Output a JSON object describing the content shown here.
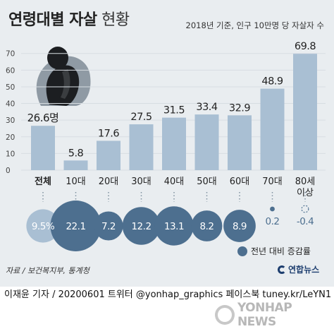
{
  "header": {
    "title_bold": "연령대별 자살",
    "title_light": "현황",
    "subtitle": "2018년 기준, 인구 10만명 당 자살자 수"
  },
  "colors": {
    "panel": "#e9edf0",
    "bar": "#a9bfd3",
    "bubble_light": "#a9bfd3",
    "bubble_dark": "#4d6f8f",
    "text": "#222222"
  },
  "chart_data": {
    "type": "bar",
    "title": "연령대별 자살 현황",
    "categories": [
      "전체",
      "10대",
      "20대",
      "30대",
      "40대",
      "50대",
      "60대",
      "70대",
      "80세 이상"
    ],
    "values": [
      26.6,
      5.8,
      17.6,
      27.5,
      31.5,
      33.4,
      32.9,
      48.9,
      69.8
    ],
    "value_labels": [
      "26.6명",
      "5.8",
      "17.6",
      "27.5",
      "31.5",
      "33.4",
      "32.9",
      "48.9",
      "69.8"
    ],
    "y_ticks": [
      0,
      10,
      20,
      30,
      40,
      50,
      60,
      70
    ],
    "ylim": [
      0,
      72
    ],
    "growth_rates": {
      "name": "전년 대비 증감률",
      "values": [
        9.5,
        22.1,
        7.2,
        12.2,
        13.1,
        8.2,
        8.9,
        0.2,
        -0.4
      ],
      "labels": [
        "9.5%",
        "22.1",
        "7.2",
        "12.2",
        "13.1",
        "8.2",
        "8.9",
        "0.2",
        "-0.4"
      ]
    }
  },
  "legend": {
    "label": "전년 대비 증감률"
  },
  "source": "자료 / 보건복지부, 통계청",
  "logo": "연합뉴스",
  "credit": "이재윤 기자 / 20200601   트위터 @yonhap_graphics  페이스북 tuney.kr/LeYN1",
  "watermark": "YONHAP NEWS"
}
